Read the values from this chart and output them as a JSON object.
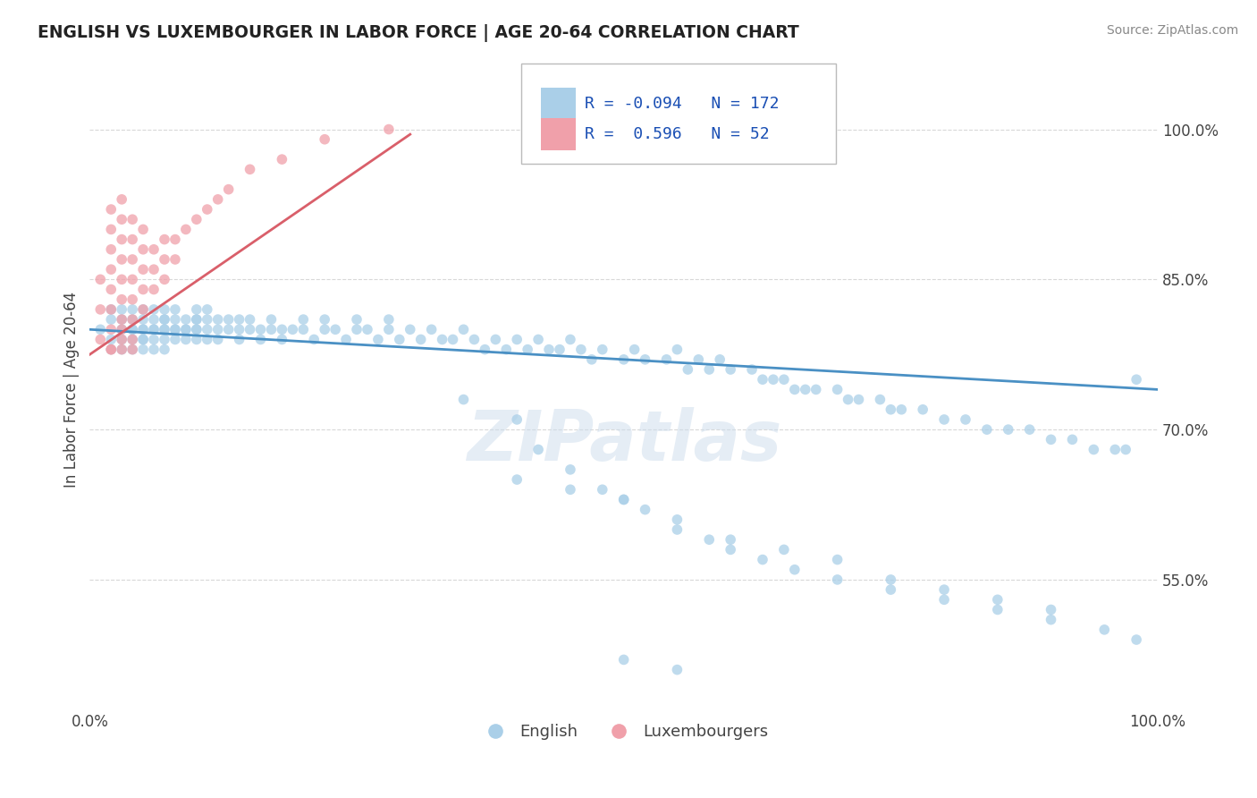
{
  "title": "ENGLISH VS LUXEMBOURGER IN LABOR FORCE | AGE 20-64 CORRELATION CHART",
  "source": "Source: ZipAtlas.com",
  "ylabel": "In Labor Force | Age 20-64",
  "xlim": [
    0.0,
    1.0
  ],
  "ylim": [
    0.42,
    1.06
  ],
  "x_tick_labels": [
    "0.0%",
    "100.0%"
  ],
  "y_tick_labels": [
    "55.0%",
    "70.0%",
    "85.0%",
    "100.0%"
  ],
  "y_tick_values": [
    0.55,
    0.7,
    0.85,
    1.0
  ],
  "watermark": "ZIPatlas",
  "english_R": "-0.094",
  "english_N": "172",
  "luxembourger_R": "0.596",
  "luxembourger_N": "52",
  "english_color": "#aacfe8",
  "english_line_color": "#4a90c4",
  "luxembourger_color": "#f0a0aa",
  "luxembourger_line_color": "#d95f6a",
  "background_color": "#ffffff",
  "grid_color": "#d8d8d8",
  "title_color": "#222222",
  "axis_label_color": "#444444",
  "legend_R_color": "#1a4fb4",
  "english_scatter_x": [
    0.01,
    0.02,
    0.02,
    0.02,
    0.02,
    0.03,
    0.03,
    0.03,
    0.03,
    0.03,
    0.04,
    0.04,
    0.04,
    0.04,
    0.04,
    0.04,
    0.05,
    0.05,
    0.05,
    0.05,
    0.05,
    0.05,
    0.05,
    0.06,
    0.06,
    0.06,
    0.06,
    0.06,
    0.06,
    0.07,
    0.07,
    0.07,
    0.07,
    0.07,
    0.07,
    0.07,
    0.08,
    0.08,
    0.08,
    0.08,
    0.08,
    0.09,
    0.09,
    0.09,
    0.09,
    0.1,
    0.1,
    0.1,
    0.1,
    0.1,
    0.1,
    0.11,
    0.11,
    0.11,
    0.11,
    0.12,
    0.12,
    0.12,
    0.13,
    0.13,
    0.14,
    0.14,
    0.14,
    0.15,
    0.15,
    0.16,
    0.16,
    0.17,
    0.17,
    0.18,
    0.18,
    0.19,
    0.2,
    0.2,
    0.21,
    0.22,
    0.22,
    0.23,
    0.24,
    0.25,
    0.25,
    0.26,
    0.27,
    0.28,
    0.28,
    0.29,
    0.3,
    0.31,
    0.32,
    0.33,
    0.34,
    0.35,
    0.36,
    0.37,
    0.38,
    0.39,
    0.4,
    0.41,
    0.42,
    0.43,
    0.44,
    0.45,
    0.46,
    0.47,
    0.48,
    0.5,
    0.51,
    0.52,
    0.54,
    0.55,
    0.56,
    0.57,
    0.58,
    0.59,
    0.6,
    0.62,
    0.63,
    0.64,
    0.65,
    0.66,
    0.67,
    0.68,
    0.7,
    0.71,
    0.72,
    0.74,
    0.75,
    0.76,
    0.78,
    0.8,
    0.82,
    0.84,
    0.86,
    0.88,
    0.9,
    0.92,
    0.94,
    0.96,
    0.97,
    0.98,
    0.35,
    0.4,
    0.42,
    0.45,
    0.48,
    0.5,
    0.52,
    0.55,
    0.58,
    0.6,
    0.63,
    0.66,
    0.7,
    0.75,
    0.8,
    0.85,
    0.9,
    0.4,
    0.45,
    0.5,
    0.55,
    0.6,
    0.65,
    0.7,
    0.75,
    0.8,
    0.85,
    0.9,
    0.95,
    0.98,
    0.5,
    0.55
  ],
  "english_scatter_y": [
    0.8,
    0.79,
    0.81,
    0.82,
    0.78,
    0.8,
    0.79,
    0.81,
    0.78,
    0.82,
    0.79,
    0.8,
    0.81,
    0.82,
    0.78,
    0.8,
    0.79,
    0.8,
    0.81,
    0.82,
    0.78,
    0.8,
    0.79,
    0.8,
    0.81,
    0.82,
    0.79,
    0.8,
    0.78,
    0.8,
    0.81,
    0.82,
    0.79,
    0.8,
    0.81,
    0.78,
    0.8,
    0.81,
    0.79,
    0.8,
    0.82,
    0.8,
    0.81,
    0.79,
    0.8,
    0.81,
    0.8,
    0.82,
    0.79,
    0.8,
    0.81,
    0.8,
    0.81,
    0.82,
    0.79,
    0.8,
    0.81,
    0.79,
    0.81,
    0.8,
    0.8,
    0.81,
    0.79,
    0.8,
    0.81,
    0.8,
    0.79,
    0.8,
    0.81,
    0.8,
    0.79,
    0.8,
    0.81,
    0.8,
    0.79,
    0.8,
    0.81,
    0.8,
    0.79,
    0.8,
    0.81,
    0.8,
    0.79,
    0.8,
    0.81,
    0.79,
    0.8,
    0.79,
    0.8,
    0.79,
    0.79,
    0.8,
    0.79,
    0.78,
    0.79,
    0.78,
    0.79,
    0.78,
    0.79,
    0.78,
    0.78,
    0.79,
    0.78,
    0.77,
    0.78,
    0.77,
    0.78,
    0.77,
    0.77,
    0.78,
    0.76,
    0.77,
    0.76,
    0.77,
    0.76,
    0.76,
    0.75,
    0.75,
    0.75,
    0.74,
    0.74,
    0.74,
    0.74,
    0.73,
    0.73,
    0.73,
    0.72,
    0.72,
    0.72,
    0.71,
    0.71,
    0.7,
    0.7,
    0.7,
    0.69,
    0.69,
    0.68,
    0.68,
    0.68,
    0.75,
    0.73,
    0.71,
    0.68,
    0.66,
    0.64,
    0.63,
    0.62,
    0.6,
    0.59,
    0.58,
    0.57,
    0.56,
    0.55,
    0.54,
    0.53,
    0.52,
    0.51,
    0.65,
    0.64,
    0.63,
    0.61,
    0.59,
    0.58,
    0.57,
    0.55,
    0.54,
    0.53,
    0.52,
    0.5,
    0.49,
    0.47,
    0.46
  ],
  "lux_scatter_x": [
    0.01,
    0.01,
    0.01,
    0.02,
    0.02,
    0.02,
    0.02,
    0.02,
    0.02,
    0.02,
    0.02,
    0.02,
    0.03,
    0.03,
    0.03,
    0.03,
    0.03,
    0.03,
    0.03,
    0.03,
    0.03,
    0.03,
    0.04,
    0.04,
    0.04,
    0.04,
    0.04,
    0.04,
    0.04,
    0.04,
    0.05,
    0.05,
    0.05,
    0.05,
    0.05,
    0.06,
    0.06,
    0.06,
    0.07,
    0.07,
    0.07,
    0.08,
    0.08,
    0.09,
    0.1,
    0.11,
    0.12,
    0.13,
    0.15,
    0.18,
    0.22,
    0.28
  ],
  "lux_scatter_y": [
    0.79,
    0.82,
    0.85,
    0.78,
    0.8,
    0.82,
    0.84,
    0.86,
    0.88,
    0.9,
    0.92,
    0.78,
    0.79,
    0.81,
    0.83,
    0.85,
    0.87,
    0.89,
    0.91,
    0.93,
    0.78,
    0.8,
    0.79,
    0.81,
    0.83,
    0.85,
    0.87,
    0.89,
    0.91,
    0.78,
    0.82,
    0.84,
    0.86,
    0.88,
    0.9,
    0.84,
    0.86,
    0.88,
    0.85,
    0.87,
    0.89,
    0.87,
    0.89,
    0.9,
    0.91,
    0.92,
    0.93,
    0.94,
    0.96,
    0.97,
    0.99,
    1.0
  ]
}
